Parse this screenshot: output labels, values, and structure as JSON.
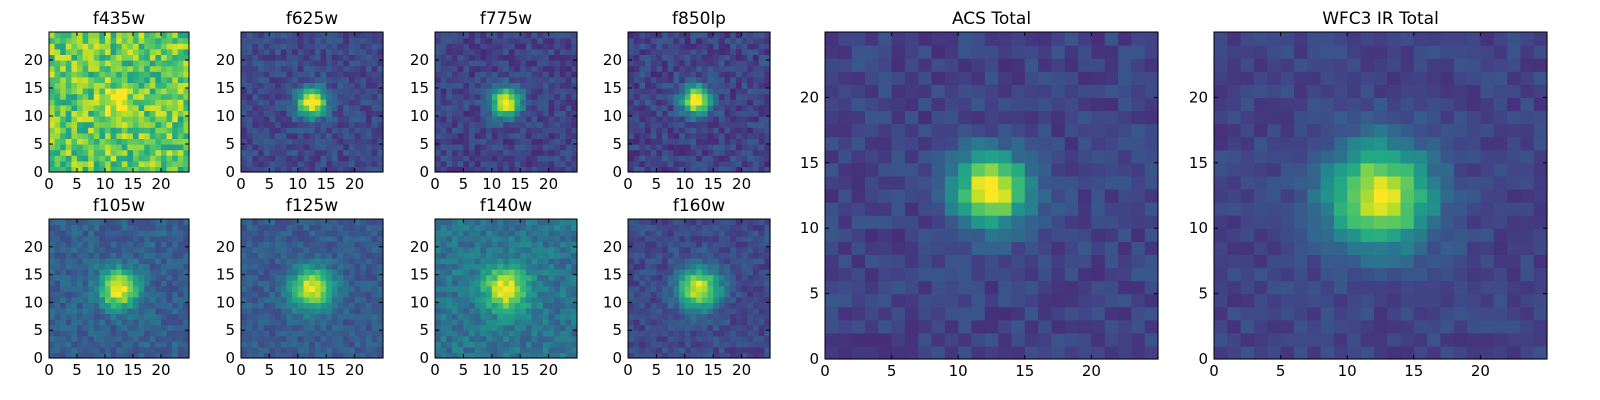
{
  "chart_data": [
    {
      "type": "heatmap",
      "title": "f435w",
      "colormap": "viridis",
      "grid": false,
      "x_range": [
        0,
        25
      ],
      "y_range": [
        0,
        25
      ],
      "x_ticks": [
        0,
        5,
        10,
        15,
        20
      ],
      "y_ticks": [
        0,
        5,
        10,
        15,
        20
      ],
      "peak": {
        "x": 12,
        "y": 12
      },
      "spread": 2.0,
      "amplitude": 0.25,
      "background": 0.75,
      "noise": 0.2,
      "seed": 11
    },
    {
      "type": "heatmap",
      "title": "f625w",
      "colormap": "viridis",
      "grid": false,
      "x_range": [
        0,
        25
      ],
      "y_range": [
        0,
        25
      ],
      "x_ticks": [
        0,
        5,
        10,
        15,
        20
      ],
      "y_ticks": [
        0,
        5,
        10,
        15,
        20
      ],
      "peak": {
        "x": 12,
        "y": 12
      },
      "spread": 1.8,
      "amplitude": 0.85,
      "background": 0.22,
      "noise": 0.09,
      "seed": 23
    },
    {
      "type": "heatmap",
      "title": "f775w",
      "colormap": "viridis",
      "grid": false,
      "x_range": [
        0,
        25
      ],
      "y_range": [
        0,
        25
      ],
      "x_ticks": [
        0,
        5,
        10,
        15,
        20
      ],
      "y_ticks": [
        0,
        5,
        10,
        15,
        20
      ],
      "peak": {
        "x": 12,
        "y": 12
      },
      "spread": 1.8,
      "amplitude": 0.85,
      "background": 0.2,
      "noise": 0.09,
      "seed": 37
    },
    {
      "type": "heatmap",
      "title": "f850lp",
      "colormap": "viridis",
      "grid": false,
      "x_range": [
        0,
        25
      ],
      "y_range": [
        0,
        25
      ],
      "x_ticks": [
        0,
        5,
        10,
        15,
        20
      ],
      "y_ticks": [
        0,
        5,
        10,
        15,
        20
      ],
      "peak": {
        "x": 11.5,
        "y": 12.5
      },
      "spread": 1.8,
      "amplitude": 0.85,
      "background": 0.2,
      "noise": 0.1,
      "seed": 41
    },
    {
      "type": "heatmap",
      "title": "f105w",
      "colormap": "viridis",
      "grid": false,
      "x_range": [
        0,
        25
      ],
      "y_range": [
        0,
        25
      ],
      "x_ticks": [
        0,
        5,
        10,
        15,
        20
      ],
      "y_ticks": [
        0,
        5,
        10,
        15,
        20
      ],
      "peak": {
        "x": 12,
        "y": 12
      },
      "spread": 2.4,
      "amplitude": 0.72,
      "background": 0.3,
      "noise": 0.09,
      "seed": 53
    },
    {
      "type": "heatmap",
      "title": "f125w",
      "colormap": "viridis",
      "grid": false,
      "x_range": [
        0,
        25
      ],
      "y_range": [
        0,
        25
      ],
      "x_ticks": [
        0,
        5,
        10,
        15,
        20
      ],
      "y_ticks": [
        0,
        5,
        10,
        15,
        20
      ],
      "peak": {
        "x": 12,
        "y": 12
      },
      "spread": 2.6,
      "amplitude": 0.7,
      "background": 0.28,
      "noise": 0.08,
      "seed": 61
    },
    {
      "type": "heatmap",
      "title": "f140w",
      "colormap": "viridis",
      "grid": false,
      "x_range": [
        0,
        25
      ],
      "y_range": [
        0,
        25
      ],
      "x_ticks": [
        0,
        5,
        10,
        15,
        20
      ],
      "y_ticks": [
        0,
        5,
        10,
        15,
        20
      ],
      "peak": {
        "x": 12,
        "y": 12
      },
      "spread": 2.8,
      "amplitude": 0.6,
      "background": 0.38,
      "noise": 0.1,
      "seed": 71
    },
    {
      "type": "heatmap",
      "title": "f160w",
      "colormap": "viridis",
      "grid": false,
      "x_range": [
        0,
        25
      ],
      "y_range": [
        0,
        25
      ],
      "x_ticks": [
        0,
        5,
        10,
        15,
        20
      ],
      "y_ticks": [
        0,
        5,
        10,
        15,
        20
      ],
      "peak": {
        "x": 12,
        "y": 12
      },
      "spread": 2.6,
      "amplitude": 0.75,
      "background": 0.22,
      "noise": 0.08,
      "seed": 83
    },
    {
      "type": "heatmap",
      "title": "ACS Total",
      "colormap": "viridis",
      "grid": false,
      "x_range": [
        0,
        25
      ],
      "y_range": [
        0,
        25
      ],
      "x_ticks": [
        0,
        5,
        10,
        15,
        20
      ],
      "y_ticks": [
        0,
        5,
        10,
        15,
        20
      ],
      "peak": {
        "x": 12,
        "y": 12.5
      },
      "spread": 1.9,
      "amplitude": 0.85,
      "background": 0.2,
      "noise": 0.07,
      "seed": 97
    },
    {
      "type": "heatmap",
      "title": "WFC3 IR Total",
      "colormap": "viridis",
      "grid": false,
      "x_range": [
        0,
        25
      ],
      "y_range": [
        0,
        25
      ],
      "x_ticks": [
        0,
        5,
        10,
        15,
        20
      ],
      "y_ticks": [
        0,
        5,
        10,
        15,
        20
      ],
      "peak": {
        "x": 12,
        "y": 12
      },
      "spread": 2.7,
      "amplitude": 0.78,
      "background": 0.2,
      "noise": 0.06,
      "seed": 101
    }
  ]
}
